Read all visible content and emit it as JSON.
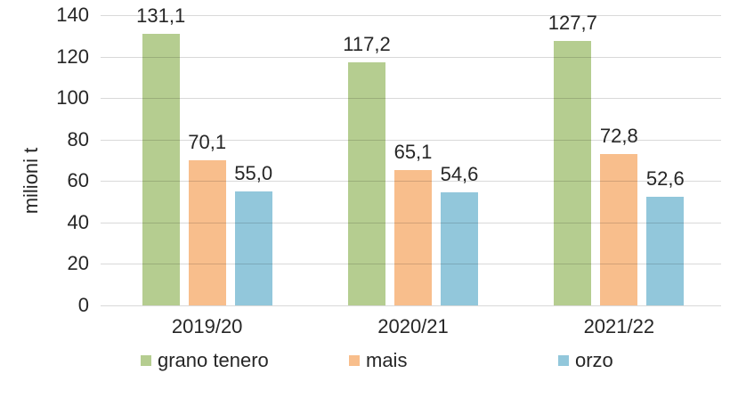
{
  "chart_data": {
    "type": "bar",
    "title": "",
    "xlabel": "",
    "ylabel": "milioni t",
    "categories": [
      "2019/20",
      "2020/21",
      "2021/22"
    ],
    "series": [
      {
        "name": "grano tenero",
        "color": "#b5cd90",
        "values": [
          131.1,
          117.2,
          127.7
        ],
        "labels": [
          "131,1",
          "117,2",
          "127,7"
        ]
      },
      {
        "name": "mais",
        "color": "#f8be8c",
        "values": [
          70.1,
          65.1,
          72.8
        ],
        "labels": [
          "70,1",
          "65,1",
          "72,8"
        ]
      },
      {
        "name": "orzo",
        "color": "#92c7db",
        "values": [
          55.0,
          54.6,
          52.6
        ],
        "labels": [
          "55,0",
          "54,6",
          "52,6"
        ]
      }
    ],
    "y_axis": {
      "min": 0,
      "max": 140,
      "step": 20,
      "tick_labels": [
        "0",
        "20",
        "40",
        "60",
        "80",
        "100",
        "120",
        "140"
      ]
    },
    "grid": true,
    "legend_position": "bottom",
    "colors": {
      "gridline": "#d9d9d9",
      "text": "#262626",
      "background": "#ffffff"
    }
  }
}
